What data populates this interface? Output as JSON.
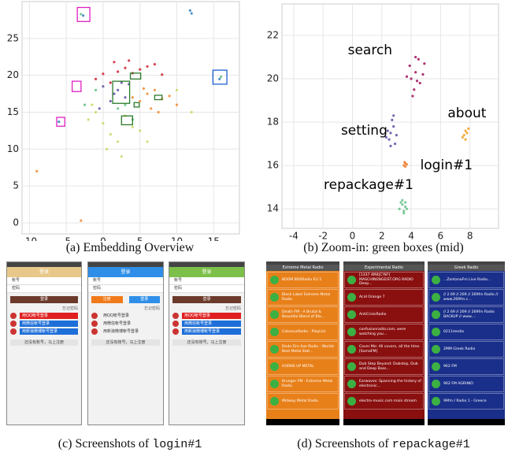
{
  "chart_data": [
    {
      "type": "scatter",
      "xlim": [
        -11,
        18.5
      ],
      "ylim": [
        -1.5,
        30
      ],
      "xticks": [
        -10,
        -5,
        0,
        5,
        10,
        15
      ],
      "yticks": [
        0,
        5,
        10,
        15,
        20,
        25
      ],
      "grid": true,
      "series": [
        {
          "color": "#d02030",
          "x": [
            -1,
            0,
            1,
            2,
            3,
            4,
            5,
            6,
            7,
            8,
            1.5,
            3.5
          ],
          "y": [
            19.5,
            20.2,
            19,
            20.5,
            21,
            20.3,
            20.8,
            21.2,
            21.5,
            20.1,
            21.8,
            22
          ]
        },
        {
          "color": "#f08a30",
          "x": [
            4,
            5,
            6,
            7,
            8,
            9,
            10,
            6.5,
            5.5,
            7.5,
            -9,
            -3
          ],
          "y": [
            17,
            16.5,
            17.5,
            18,
            16.8,
            17.2,
            16,
            15.5,
            18.2,
            15,
            7,
            0.3
          ]
        },
        {
          "color": "#c8d860",
          "x": [
            -2,
            -1,
            0,
            1,
            2,
            3,
            4,
            5,
            6,
            0.5,
            -1.5,
            2.5,
            10,
            12
          ],
          "y": [
            14,
            15,
            13.5,
            12,
            11,
            14.5,
            13,
            12.5,
            11,
            10,
            16,
            9,
            18,
            15
          ]
        },
        {
          "color": "#6050a0",
          "x": [
            1,
            2,
            3,
            2.5,
            1.5,
            -0.5,
            0,
            3.5
          ],
          "y": [
            16.5,
            18,
            17,
            19,
            17.5,
            15.5,
            18.5,
            18.8
          ]
        },
        {
          "color": "#60c080",
          "x": [
            -2.5,
            -1,
            2,
            4,
            3,
            -3,
            16
          ],
          "y": [
            16,
            18,
            15.5,
            14,
            16,
            28.3,
            19.8
          ]
        },
        {
          "color": "#3080c0",
          "x": [
            -6,
            11.8,
            12,
            -2.7,
            15.8
          ],
          "y": [
            13.7,
            28.8,
            28.4,
            28.1,
            19.5
          ]
        }
      ],
      "regions": [
        {
          "color": "#e020c0",
          "x": [
            -3.5,
            -1.8
          ],
          "y": [
            27.3,
            29.2
          ]
        },
        {
          "color": "#e020c0",
          "x": [
            -4.2,
            -3.0
          ],
          "y": [
            17.8,
            19.2
          ]
        },
        {
          "color": "#e020c0",
          "x": [
            -6.3,
            -5.2
          ],
          "y": [
            13.1,
            14.3
          ]
        },
        {
          "color": "#2060d0",
          "x": [
            14.9,
            16.8
          ],
          "y": [
            18.8,
            20.7
          ]
        },
        {
          "color": "#2a7a2a",
          "x": [
            1.3,
            3.6
          ],
          "y": [
            16.2,
            19.2
          ]
        },
        {
          "color": "#2a7a2a",
          "x": [
            3.7,
            5.1
          ],
          "y": [
            19.5,
            20.3
          ]
        },
        {
          "color": "#2a7a2a",
          "x": [
            7,
            8
          ],
          "y": [
            16.7,
            17.3
          ]
        },
        {
          "color": "#2a7a2a",
          "x": [
            2.5,
            4
          ],
          "y": [
            13.3,
            14.5
          ]
        },
        {
          "color": "#2a7a2a",
          "x": [
            4.2,
            4.9
          ],
          "y": [
            15.7,
            16.3
          ]
        }
      ]
    },
    {
      "type": "scatter",
      "xlim": [
        -4.8,
        9.95
      ],
      "ylim": [
        13.1,
        23.45
      ],
      "xticks": [
        -4,
        -2,
        0,
        2,
        4,
        6,
        8
      ],
      "yticks": [
        14,
        16,
        18,
        20,
        22
      ],
      "grid": true,
      "series": [
        {
          "color": "#a0105a",
          "x": [
            4.0,
            4.3,
            4.6,
            4.2,
            3.9,
            4.5,
            4.8,
            4.1,
            4.4,
            3.7,
            4.9,
            4.3
          ],
          "y": [
            20.0,
            20.3,
            19.8,
            19.5,
            20.6,
            20.9,
            20.2,
            19.2,
            19.9,
            20.1,
            20.7,
            21.0
          ]
        },
        {
          "color": "#5a4fa0",
          "x": [
            2.6,
            2.8,
            2.5,
            2.9,
            2.7,
            2.4,
            3.0,
            2.6,
            2.8,
            2.3
          ],
          "y": [
            17.5,
            17.8,
            17.2,
            17.0,
            18.1,
            17.6,
            17.4,
            16.9,
            18.3,
            17.3
          ]
        },
        {
          "color": "#f0a020",
          "x": [
            7.6,
            7.7,
            7.8,
            7.5,
            7.9,
            7.7
          ],
          "y": [
            17.4,
            17.6,
            17.5,
            17.3,
            17.7,
            17.2
          ]
        },
        {
          "color": "#f08030",
          "x": [
            3.5,
            3.6,
            3.7,
            3.6,
            3.55
          ],
          "y": [
            16.0,
            16.1,
            16.05,
            15.95,
            16.15
          ]
        },
        {
          "color": "#66c28a",
          "x": [
            3.2,
            3.4,
            3.6,
            3.5,
            3.3,
            3.7,
            3.4,
            3.6,
            3.5
          ],
          "y": [
            14.0,
            14.2,
            14.1,
            13.9,
            14.3,
            14.0,
            14.4,
            14.3,
            13.8
          ]
        }
      ],
      "annotations": [
        {
          "text": "search",
          "x": 1.2,
          "y": 21.3
        },
        {
          "text": "about",
          "x": 7.8,
          "y": 18.4
        },
        {
          "text": "setting",
          "x": 0.8,
          "y": 17.6
        },
        {
          "text": "login#1",
          "x": 6.4,
          "y": 16.0
        },
        {
          "text": "repackage#1",
          "x": 1.1,
          "y": 15.1
        }
      ]
    }
  ],
  "captions": [
    {
      "text": "(a) Embedding Overview"
    },
    {
      "text": "(b) Zoom-in: green boxes (mid)"
    },
    {
      "text": "(c) Screenshots of ",
      "code": "login#1"
    },
    {
      "text": "(d) Screenshots of ",
      "code": "repackage#1"
    }
  ],
  "login_screens": [
    {
      "title": "登录",
      "bar_color": "#e8c88a",
      "fields": [
        "帐号",
        "密码"
      ],
      "buttons": [
        {
          "text": "登录",
          "color": "#6b3a2a"
        }
      ],
      "link": "忘记密码",
      "rows": [
        {
          "text": "用QQ帐号登录",
          "color": "#e02020"
        },
        {
          "text": "用微信帐号登录",
          "color": "#1e6fd9"
        },
        {
          "text": "用新浪微博帐号登录",
          "color": "#1e6fd9"
        }
      ],
      "footer": "还没有账号，马上注册"
    },
    {
      "title": "登录",
      "bar_color": "#2f8fe8",
      "fields": [
        "帐号",
        "密码"
      ],
      "buttons": [
        {
          "text": "注册",
          "color": "#f07a1a"
        },
        {
          "text": "登录",
          "color": "#2f8fe8"
        }
      ],
      "link": "忘记密码",
      "rows": [
        {
          "text": "用QQ帐号登录",
          "color": "#f2f2f2"
        },
        {
          "text": "用微信帐号登录",
          "color": "#f2f2f2"
        },
        {
          "text": "用新浪微博帐号登录",
          "color": "#f2f2f2"
        }
      ],
      "footer": "还没有账号，马上注册"
    },
    {
      "title": "登录",
      "bar_color": "#7cc04a",
      "fields": [
        "帐号",
        "密码"
      ],
      "buttons": [
        {
          "text": "登录",
          "color": "#6b3a2a"
        }
      ],
      "link": "忘记密码",
      "rows": [
        {
          "text": "用QQ帐号登录",
          "color": "#e02020"
        },
        {
          "text": "用微信帐号登录",
          "color": "#1e6fd9"
        },
        {
          "text": "用新浪微博帐号登录",
          "color": "#1e6fd9"
        }
      ],
      "footer": "还没有账号，马上注册"
    }
  ],
  "radio_screens": [
    {
      "title": "Extreme Metal Radio",
      "color": "#e8801a",
      "items": [
        "BOOM BOXRadio EU 1",
        "Black Label Extreme Metal Radio",
        "Death FM - A Brutal & Beautiful Blend of Bla...",
        "ColossusRadio - PlayList",
        "Dodo Fire Axe Radio - Worlds Best Metal Stat...",
        "HORNS UP METAL",
        "Krueger FM - Extreme Metal Radio",
        "Midway Metal Radio"
      ]
    },
    {
      "title": "Experimental Radio",
      "color": "#8a1010",
      "items": [
        "[1337 4M4|C!N?] MASCHINENGEIST.ORG RADIO Deep...",
        "Acid Orange 7",
        "AntiCrisisRadio",
        "confusionradio.com, were watching you...",
        "Cover Me: All covers, all the time. [SomaFM]",
        "Dub Step Beyond: Dubstep, Dub and Deep Bass...",
        "Earwaves: Spanning the history of electronic...",
        "electro-music.com main stream"
      ]
    },
    {
      "title": "Greek Radio",
      "color": "#1a2f8a",
      "items": [
        "...ZontanaFm Live Radio...",
        "// 2.69 // 269 // 269fm Radio // www.269fm.c...",
        "// 2.69 // 269 // 269fm Radio BACKUP // www....",
        "0211media",
        "2MM Greek Radio",
        "962 FM",
        "962 FM AGRINIO",
        "99fm / Radio 1 - Greece"
      ]
    }
  ]
}
